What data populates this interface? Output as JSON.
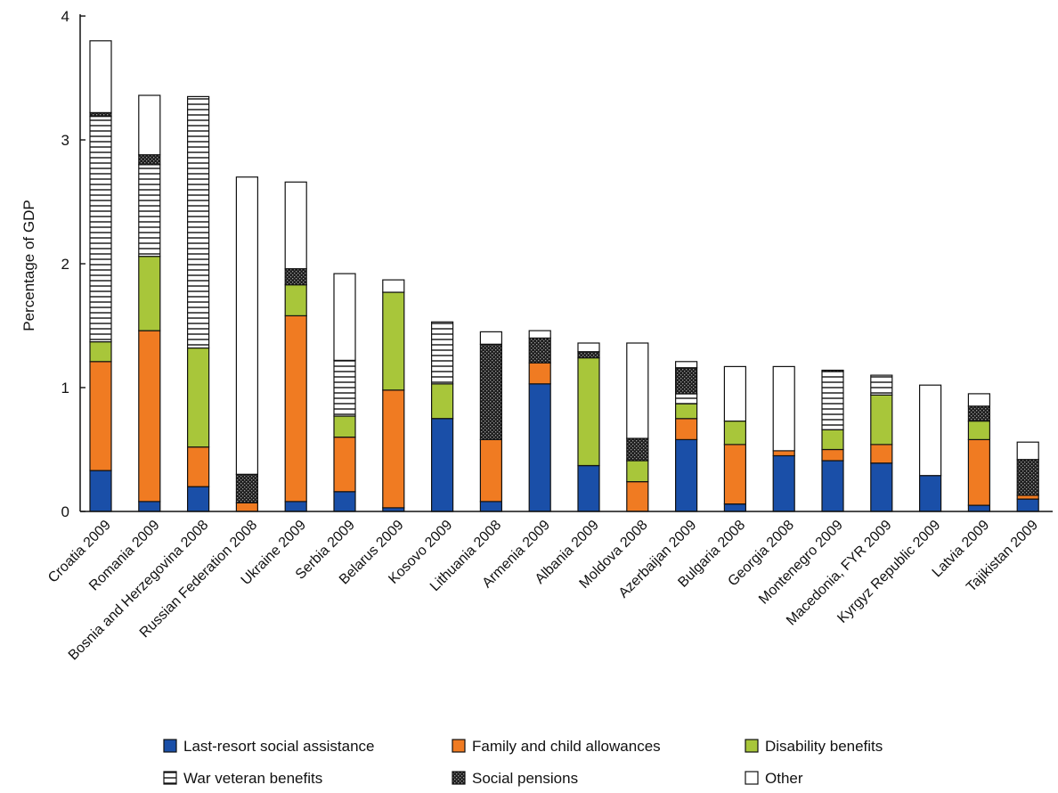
{
  "chart_data": {
    "type": "bar",
    "stacked": true,
    "title": "",
    "xlabel": "",
    "ylabel": "Percentage of GDP",
    "ylim": [
      0,
      4
    ],
    "yticks": [
      0,
      1,
      2,
      3,
      4
    ],
    "ytick_labels": [
      "0",
      "1",
      "2",
      "3",
      "4"
    ],
    "grid": false,
    "legend_position": "bottom",
    "categories": [
      "Croatia 2009",
      "Romania 2009",
      "Bosnia and Herzegovina 2008",
      "Russian Federation 2008",
      "Ukraine 2009",
      "Serbia 2009",
      "Belarus 2009",
      "Kosovo 2009",
      "Lithuania 2008",
      "Armenia 2009",
      "Albania 2009",
      "Moldova 2008",
      "Azerbaijan 2009",
      "Bulgaria 2008",
      "Georgia 2008",
      "Montenegro 2009",
      "Macedonia, FYR 2009",
      "Kyrgyz Republic 2009",
      "Latvia 2009",
      "Tajikistan 2009"
    ],
    "series": [
      {
        "name": "Last-resort social assistance",
        "color": "#1a4fa8",
        "pattern": "solid",
        "values": [
          0.33,
          0.08,
          0.2,
          0.0,
          0.08,
          0.16,
          0.03,
          0.75,
          0.08,
          1.03,
          0.37,
          0.0,
          0.58,
          0.06,
          0.45,
          0.41,
          0.39,
          0.29,
          0.05,
          0.1
        ]
      },
      {
        "name": "Family and child allowances",
        "color": "#f07b22",
        "pattern": "solid",
        "values": [
          0.88,
          1.38,
          0.32,
          0.07,
          1.5,
          0.44,
          0.95,
          0.0,
          0.5,
          0.17,
          0.0,
          0.24,
          0.17,
          0.48,
          0.04,
          0.09,
          0.15,
          0.0,
          0.53,
          0.03
        ]
      },
      {
        "name": "Disability benefits",
        "color": "#a8c63a",
        "pattern": "solid",
        "values": [
          0.16,
          0.6,
          0.8,
          0.0,
          0.25,
          0.17,
          0.79,
          0.28,
          0.0,
          0.0,
          0.87,
          0.17,
          0.12,
          0.19,
          0.0,
          0.16,
          0.4,
          0.0,
          0.15,
          0.0
        ]
      },
      {
        "name": "War veteran benefits",
        "color": "#ffffff",
        "pattern": "hlines",
        "values": [
          1.82,
          0.74,
          2.03,
          0.0,
          0.0,
          0.45,
          0.0,
          0.5,
          0.0,
          0.0,
          0.0,
          0.0,
          0.08,
          0.0,
          0.0,
          0.47,
          0.16,
          0.0,
          0.0,
          0.0
        ]
      },
      {
        "name": "Social pensions",
        "color": "#1e1e1e",
        "pattern": "crosshatch",
        "values": [
          0.03,
          0.08,
          0.0,
          0.23,
          0.13,
          0.0,
          0.0,
          0.0,
          0.77,
          0.2,
          0.05,
          0.18,
          0.21,
          0.0,
          0.0,
          0.01,
          0.0,
          0.0,
          0.12,
          0.29
        ]
      },
      {
        "name": "Other",
        "color": "#ffffff",
        "pattern": "solid",
        "values": [
          0.58,
          0.48,
          0.0,
          2.4,
          0.7,
          0.7,
          0.1,
          0.0,
          0.1,
          0.06,
          0.07,
          0.77,
          0.05,
          0.44,
          0.68,
          0.0,
          0.0,
          0.73,
          0.1,
          0.14
        ]
      }
    ]
  }
}
